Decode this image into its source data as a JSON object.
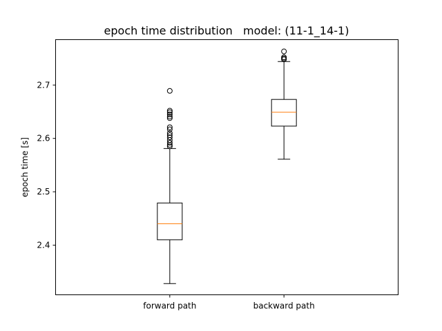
{
  "chart_data": {
    "type": "boxplot",
    "title": "epoch time distribution   model: (11-1_14-1)",
    "xlabel": "",
    "ylabel": "epoch time [s]",
    "categories": [
      "forward path",
      "backward path"
    ],
    "ylim": [
      2.307,
      2.785
    ],
    "yticks": [
      2.4,
      2.5,
      2.6,
      2.7
    ],
    "yticklabels": [
      "2.4",
      "2.5",
      "2.6",
      "2.7"
    ],
    "grid": false,
    "series": [
      {
        "category": "forward path",
        "whisker_low": 2.328,
        "q1": 2.41,
        "median": 2.44,
        "q3": 2.479,
        "whisker_high": 2.581,
        "outliers": [
          2.585,
          2.588,
          2.592,
          2.597,
          2.602,
          2.606,
          2.61,
          2.617,
          2.621,
          2.638,
          2.641,
          2.645,
          2.649,
          2.652,
          2.689
        ]
      },
      {
        "category": "backward path",
        "whisker_low": 2.561,
        "q1": 2.623,
        "median": 2.649,
        "q3": 2.673,
        "whisker_high": 2.744,
        "outliers": [
          2.748,
          2.75,
          2.752,
          2.763
        ]
      }
    ],
    "colors": {
      "box": "#000000",
      "median": "#ff7f0e",
      "outlier": "#000000",
      "axes": "#000000"
    }
  }
}
